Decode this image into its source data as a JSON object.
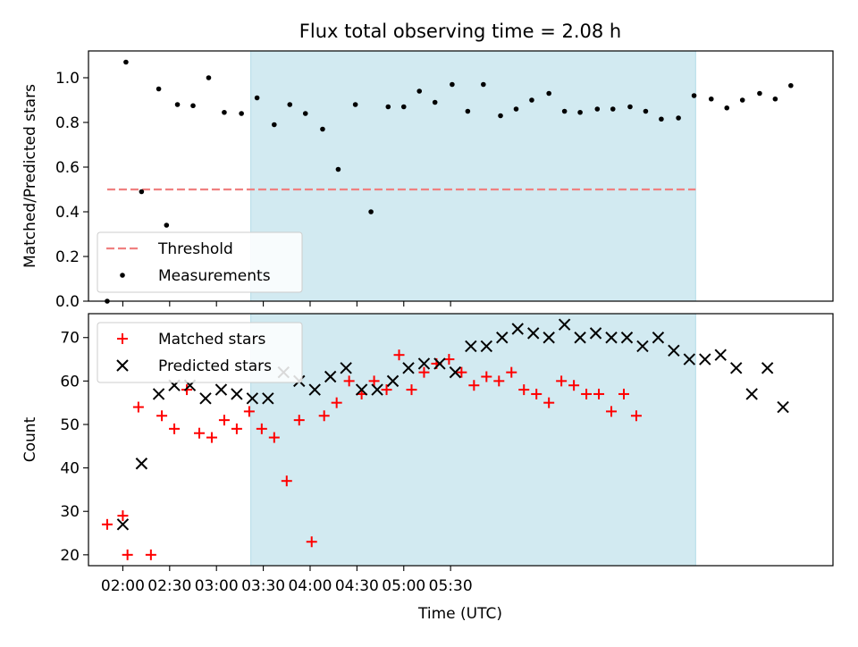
{
  "title": "Flux total observing time = 2.08 h",
  "chart_data": [
    {
      "type": "scatter",
      "ylabel": "Matched/Predicted stars",
      "ylim": [
        0,
        1.12
      ],
      "xlim_minutes_utc": [
        98,
        575
      ],
      "yticks": [
        0.0,
        0.2,
        0.4,
        0.6,
        0.8,
        1.0
      ],
      "ytick_labels": [
        "0.0",
        "0.2",
        "0.4",
        "0.6",
        "0.8",
        "1.0"
      ],
      "shaded_region_minutes_utc": [
        202,
        487
      ],
      "shade_color": "#add8e6",
      "threshold": {
        "name": "Threshold",
        "value": 0.5,
        "x_range_minutes_utc": [
          110,
          487
        ],
        "color": "#f08080"
      },
      "legend": {
        "placement": "lower-left",
        "entries": [
          {
            "name": "Threshold",
            "marker": "dashed-line",
            "color": "#f08080"
          },
          {
            "name": "Measurements",
            "marker": "dot",
            "color": "#000000"
          }
        ]
      },
      "series": [
        {
          "name": "Measurements",
          "color": "#000000",
          "points": [
            [
              110,
              0.0
            ],
            [
              122,
              1.07
            ],
            [
              132,
              0.49
            ],
            [
              143,
              0.95
            ],
            [
              148,
              0.34
            ],
            [
              155,
              0.88
            ],
            [
              165,
              0.875
            ],
            [
              175,
              1.0
            ],
            [
              185,
              0.845
            ],
            [
              196,
              0.84
            ],
            [
              206,
              0.91
            ],
            [
              217,
              0.79
            ],
            [
              227,
              0.88
            ],
            [
              237,
              0.84
            ],
            [
              248,
              0.77
            ],
            [
              258,
              0.59
            ],
            [
              269,
              0.88
            ],
            [
              279,
              0.4
            ],
            [
              290,
              0.87
            ],
            [
              300,
              0.87
            ],
            [
              310,
              0.94
            ],
            [
              320,
              0.89
            ],
            [
              331,
              0.97
            ],
            [
              341,
              0.85
            ],
            [
              351,
              0.97
            ],
            [
              362,
              0.83
            ],
            [
              372,
              0.86
            ],
            [
              382,
              0.9
            ],
            [
              393,
              0.93
            ],
            [
              403,
              0.85
            ],
            [
              413,
              0.845
            ],
            [
              424,
              0.86
            ],
            [
              434,
              0.86
            ],
            [
              445,
              0.87
            ],
            [
              455,
              0.85
            ],
            [
              465,
              0.815
            ],
            [
              476,
              0.82
            ],
            [
              486,
              0.92
            ],
            [
              497,
              0.905
            ],
            [
              507,
              0.865
            ],
            [
              517,
              0.9
            ],
            [
              528,
              0.93
            ],
            [
              538,
              0.905
            ],
            [
              548,
              0.965
            ]
          ]
        }
      ]
    },
    {
      "type": "scatter",
      "xlabel": "Time (UTC)",
      "ylabel": "Count",
      "ylim": [
        17.5,
        75.5
      ],
      "xlim_minutes_utc": [
        98,
        575
      ],
      "xticks_minutes_utc": [
        120,
        150,
        180,
        210,
        240,
        270,
        300,
        330
      ],
      "xtick_labels": [
        "02:00",
        "02:30",
        "03:00",
        "03:30",
        "04:00",
        "04:30",
        "05:00",
        "05:30"
      ],
      "yticks": [
        20,
        30,
        40,
        50,
        60,
        70
      ],
      "ytick_labels": [
        "20",
        "30",
        "40",
        "50",
        "60",
        "70"
      ],
      "shaded_region_minutes_utc": [
        202,
        487
      ],
      "shade_color": "#add8e6",
      "legend": {
        "placement": "top-left",
        "entries": [
          {
            "name": "Matched stars",
            "marker": "plus",
            "color": "#ff0000"
          },
          {
            "name": "Predicted stars",
            "marker": "x",
            "color": "#000000"
          }
        ]
      },
      "series": [
        {
          "name": "Matched stars",
          "color": "#ff0000",
          "points": [
            [
              110,
              27
            ],
            [
              120,
              29
            ],
            [
              123,
              20
            ],
            [
              130,
              54
            ],
            [
              138,
              20
            ],
            [
              145,
              52
            ],
            [
              153,
              49
            ],
            [
              161,
              58
            ],
            [
              169,
              48
            ],
            [
              177,
              47
            ],
            [
              185,
              51
            ],
            [
              193,
              49
            ],
            [
              201,
              53
            ],
            [
              209,
              49
            ],
            [
              217,
              47
            ],
            [
              225,
              37
            ],
            [
              233,
              51
            ],
            [
              241,
              23
            ],
            [
              249,
              52
            ],
            [
              257,
              55
            ],
            [
              265,
              60
            ],
            [
              273,
              57
            ],
            [
              281,
              60
            ],
            [
              289,
              58
            ],
            [
              297,
              66
            ],
            [
              305,
              58
            ],
            [
              313,
              62
            ],
            [
              321,
              64
            ],
            [
              329,
              65
            ],
            [
              337,
              62
            ],
            [
              345,
              59
            ],
            [
              353,
              61
            ],
            [
              361,
              60
            ],
            [
              369,
              62
            ],
            [
              377,
              58
            ],
            [
              385,
              57
            ],
            [
              393,
              55
            ],
            [
              401,
              60
            ],
            [
              409,
              59
            ],
            [
              417,
              57
            ],
            [
              425,
              57
            ],
            [
              433,
              53
            ],
            [
              441,
              57
            ],
            [
              449,
              52
            ]
          ]
        },
        {
          "name": "Predicted stars",
          "color": "#000000",
          "points": [
            [
              120,
              27
            ],
            [
              132,
              41
            ],
            [
              143,
              57
            ],
            [
              153,
              59
            ],
            [
              163,
              59
            ],
            [
              173,
              56
            ],
            [
              183,
              58
            ],
            [
              193,
              57
            ],
            [
              203,
              56
            ],
            [
              213,
              56
            ],
            [
              223,
              62
            ],
            [
              233,
              60
            ],
            [
              243,
              58
            ],
            [
              253,
              61
            ],
            [
              263,
              63
            ],
            [
              273,
              58
            ],
            [
              283,
              58
            ],
            [
              293,
              60
            ],
            [
              303,
              63
            ],
            [
              313,
              64
            ],
            [
              323,
              64
            ],
            [
              333,
              62
            ],
            [
              343,
              68
            ],
            [
              353,
              68
            ],
            [
              363,
              70
            ],
            [
              373,
              72
            ],
            [
              383,
              71
            ],
            [
              393,
              70
            ],
            [
              403,
              73
            ],
            [
              413,
              70
            ],
            [
              423,
              71
            ],
            [
              433,
              70
            ],
            [
              443,
              70
            ],
            [
              453,
              68
            ],
            [
              463,
              70
            ],
            [
              473,
              67
            ],
            [
              483,
              65
            ],
            [
              493,
              65
            ],
            [
              503,
              66
            ],
            [
              513,
              63
            ],
            [
              523,
              57
            ],
            [
              533,
              63
            ],
            [
              543,
              54
            ]
          ]
        }
      ]
    }
  ]
}
